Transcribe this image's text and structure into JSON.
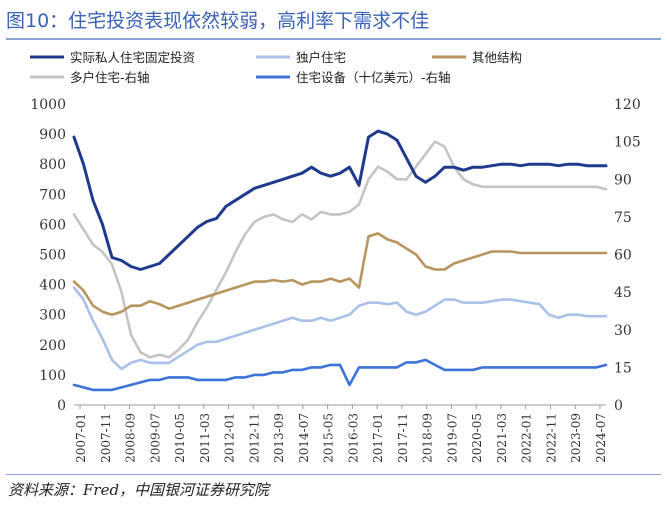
{
  "title": "图10：住宅投资表现依然较弱，高利率下需求不佳",
  "source": "资料来源：Fred，中国银河证券研究院",
  "chart_data": {
    "type": "line",
    "x": [
      "2007-01",
      "2007-05",
      "2007-09",
      "2008-01",
      "2008-05",
      "2008-09",
      "2009-01",
      "2009-05",
      "2009-09",
      "2010-01",
      "2010-05",
      "2010-09",
      "2011-01",
      "2011-05",
      "2011-09",
      "2012-01",
      "2012-05",
      "2012-09",
      "2013-01",
      "2013-05",
      "2013-09",
      "2014-01",
      "2014-05",
      "2014-09",
      "2015-01",
      "2015-05",
      "2015-09",
      "2016-01",
      "2016-05",
      "2016-09",
      "2017-01",
      "2017-05",
      "2017-09",
      "2017-11",
      "2018-01",
      "2018-05",
      "2018-09",
      "2019-01",
      "2019-05",
      "2019-09",
      "2020-01",
      "2020-04",
      "2020-07",
      "2020-10",
      "2021-01",
      "2021-05",
      "2021-09",
      "2022-01",
      "2022-05",
      "2022-09",
      "2023-01",
      "2023-05",
      "2023-09",
      "2024-01",
      "2024-05",
      "2024-09",
      "2024-12"
    ],
    "xticks": [
      "2007-01",
      "2007-11",
      "2008-09",
      "2009-07",
      "2010-05",
      "2011-03",
      "2012-01",
      "2012-11",
      "2013-09",
      "2014-07",
      "2015-05",
      "2016-03",
      "2017-01",
      "2017-11",
      "2018-09",
      "2019-07",
      "2020-05",
      "2021-03",
      "2022-01",
      "2022-11",
      "2023-09",
      "2024-07"
    ],
    "ylim": [
      0,
      1000
    ],
    "yticks": [
      0,
      100,
      200,
      300,
      400,
      500,
      600,
      700,
      800,
      900,
      1000
    ],
    "y2lim": [
      0,
      120
    ],
    "y2ticks": [
      0,
      15,
      30,
      45,
      60,
      75,
      90,
      105,
      120
    ],
    "grid": false,
    "legend_position": "top",
    "series": [
      {
        "name": "实际私人住宅固定投资",
        "axis": "left",
        "color": "#1f3a8c",
        "values": [
          890,
          800,
          680,
          600,
          490,
          480,
          460,
          450,
          460,
          470,
          500,
          530,
          560,
          590,
          610,
          620,
          660,
          680,
          700,
          720,
          730,
          740,
          750,
          760,
          770,
          790,
          770,
          760,
          770,
          790,
          730,
          890,
          910,
          900,
          880,
          820,
          760,
          740,
          760,
          790,
          790,
          780,
          790,
          790,
          795,
          800,
          800,
          795,
          800,
          800,
          800,
          795,
          800,
          800,
          795,
          795,
          795
        ]
      },
      {
        "name": "独户住宅",
        "axis": "left",
        "color": "#a9c1e8",
        "values": [
          390,
          350,
          280,
          220,
          150,
          120,
          140,
          150,
          140,
          140,
          140,
          160,
          180,
          200,
          210,
          210,
          220,
          230,
          240,
          250,
          260,
          270,
          280,
          290,
          280,
          280,
          290,
          280,
          290,
          300,
          330,
          340,
          340,
          335,
          340,
          310,
          300,
          310,
          330,
          350,
          350,
          340,
          340,
          340,
          345,
          350,
          350,
          345,
          340,
          335,
          300,
          290,
          300,
          300,
          295,
          295,
          295
        ]
      },
      {
        "name": "其他结构",
        "axis": "left",
        "color": "#b8945f",
        "values": [
          410,
          380,
          330,
          310,
          300,
          310,
          330,
          330,
          345,
          335,
          320,
          330,
          340,
          350,
          360,
          370,
          380,
          390,
          400,
          410,
          410,
          415,
          410,
          415,
          400,
          410,
          410,
          420,
          410,
          420,
          390,
          560,
          570,
          550,
          540,
          520,
          500,
          460,
          450,
          450,
          470,
          480,
          490,
          500,
          510,
          510,
          510,
          505,
          505,
          505,
          505,
          505,
          505,
          505,
          505,
          505,
          505
        ]
      },
      {
        "name": "多户住宅-右轴",
        "axis": "right",
        "color": "#c4c4c4",
        "values": [
          76,
          70,
          64,
          61,
          56,
          45,
          28,
          21,
          19,
          20,
          19,
          22,
          26,
          33,
          39,
          46,
          53,
          61,
          68,
          73,
          75,
          76,
          74,
          73,
          76,
          74,
          77,
          76,
          76,
          77,
          80,
          90,
          95,
          93,
          90,
          90,
          95,
          100,
          105,
          103,
          95,
          90,
          88,
          87,
          87,
          87,
          87,
          87,
          87,
          87,
          87,
          87,
          87,
          87,
          87,
          87,
          86
        ]
      },
      {
        "name": "住宅设备（十亿美元）-右轴",
        "axis": "right",
        "color": "#3c73d9",
        "values": [
          8,
          7,
          6,
          6,
          6,
          7,
          8,
          9,
          10,
          10,
          11,
          11,
          11,
          10,
          10,
          10,
          10,
          11,
          11,
          12,
          12,
          13,
          13,
          14,
          14,
          15,
          15,
          16,
          16,
          8,
          15,
          15,
          15,
          15,
          15,
          17,
          17,
          18,
          16,
          14,
          14,
          14,
          14,
          15,
          15,
          15,
          15,
          15,
          15,
          15,
          15,
          15,
          15,
          15,
          15,
          15,
          16
        ]
      }
    ]
  }
}
